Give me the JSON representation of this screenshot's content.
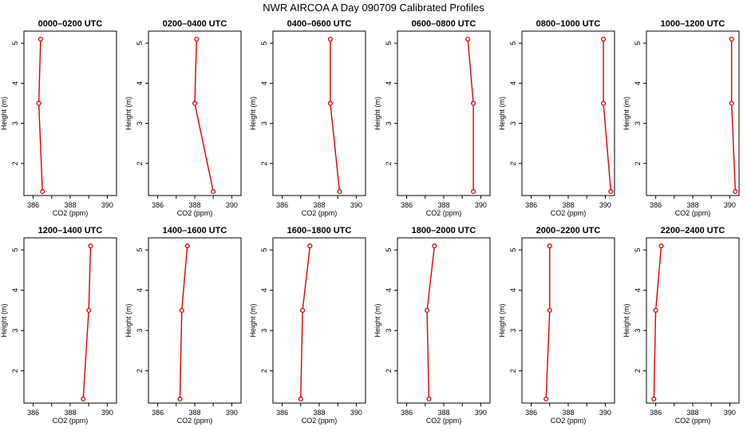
{
  "figure": {
    "title": "NWR AIRCOA A  Day 090709  Calibrated Profiles",
    "line_color": "#dd0000",
    "point_color": "#dd0000"
  },
  "chart_data": [
    {
      "type": "line",
      "title": "0000–0200 UTC",
      "xlabel": "CO2 (ppm)",
      "ylabel": "Height (m)",
      "xlim": [
        385.5,
        390.5
      ],
      "ylim": [
        1.2,
        5.3
      ],
      "xticks": [
        386,
        388,
        390
      ],
      "yticks": [
        2,
        3,
        4,
        5
      ],
      "x": [
        386.5,
        386.3,
        386.4
      ],
      "y": [
        1.3,
        3.5,
        5.1
      ]
    },
    {
      "type": "line",
      "title": "0200–0400 UTC",
      "xlabel": "CO2 (ppm)",
      "ylabel": "Height (m)",
      "xlim": [
        385.5,
        390.5
      ],
      "ylim": [
        1.2,
        5.3
      ],
      "xticks": [
        386,
        388,
        390
      ],
      "yticks": [
        2,
        3,
        4,
        5
      ],
      "x": [
        389.0,
        388.0,
        388.1
      ],
      "y": [
        1.3,
        3.5,
        5.1
      ]
    },
    {
      "type": "line",
      "title": "0400–0600 UTC",
      "xlabel": "CO2 (ppm)",
      "ylabel": "Height (m)",
      "xlim": [
        385.5,
        390.5
      ],
      "ylim": [
        1.2,
        5.3
      ],
      "xticks": [
        386,
        388,
        390
      ],
      "yticks": [
        2,
        3,
        4,
        5
      ],
      "x": [
        389.1,
        388.6,
        388.6
      ],
      "y": [
        1.3,
        3.5,
        5.1
      ]
    },
    {
      "type": "line",
      "title": "0600–0800 UTC",
      "xlabel": "CO2 (ppm)",
      "ylabel": "Height (m)",
      "xlim": [
        385.5,
        390.5
      ],
      "ylim": [
        1.2,
        5.3
      ],
      "xticks": [
        386,
        388,
        390
      ],
      "yticks": [
        2,
        3,
        4,
        5
      ],
      "x": [
        389.6,
        389.6,
        389.3
      ],
      "y": [
        1.3,
        3.5,
        5.1
      ]
    },
    {
      "type": "line",
      "title": "0800–1000 UTC",
      "xlabel": "CO2 (ppm)",
      "ylabel": "Height (m)",
      "xlim": [
        385.5,
        390.5
      ],
      "ylim": [
        1.2,
        5.3
      ],
      "xticks": [
        386,
        388,
        390
      ],
      "yticks": [
        2,
        3,
        4,
        5
      ],
      "x": [
        390.3,
        389.9,
        389.9
      ],
      "y": [
        1.3,
        3.5,
        5.1
      ]
    },
    {
      "type": "line",
      "title": "1000–1200 UTC",
      "xlabel": "CO2 (ppm)",
      "ylabel": "Height (m)",
      "xlim": [
        385.5,
        390.5
      ],
      "ylim": [
        1.2,
        5.3
      ],
      "xticks": [
        386,
        388,
        390
      ],
      "yticks": [
        2,
        3,
        4,
        5
      ],
      "x": [
        390.3,
        390.1,
        390.1
      ],
      "y": [
        1.3,
        3.5,
        5.1
      ]
    },
    {
      "type": "line",
      "title": "1200–1400 UTC",
      "xlabel": "CO2 (ppm)",
      "ylabel": "Height (m)",
      "xlim": [
        385.5,
        390.5
      ],
      "ylim": [
        1.2,
        5.3
      ],
      "xticks": [
        386,
        388,
        390
      ],
      "yticks": [
        2,
        3,
        4,
        5
      ],
      "x": [
        388.7,
        389.0,
        389.1
      ],
      "y": [
        1.3,
        3.5,
        5.1
      ]
    },
    {
      "type": "line",
      "title": "1400–1600 UTC",
      "xlabel": "CO2 (ppm)",
      "ylabel": "Height (m)",
      "xlim": [
        385.5,
        390.5
      ],
      "ylim": [
        1.2,
        5.3
      ],
      "xticks": [
        386,
        388,
        390
      ],
      "yticks": [
        2,
        3,
        4,
        5
      ],
      "x": [
        387.2,
        387.3,
        387.6
      ],
      "y": [
        1.3,
        3.5,
        5.1
      ]
    },
    {
      "type": "line",
      "title": "1600–1800 UTC",
      "xlabel": "CO2 (ppm)",
      "ylabel": "Height (m)",
      "xlim": [
        385.5,
        390.5
      ],
      "ylim": [
        1.2,
        5.3
      ],
      "xticks": [
        386,
        388,
        390
      ],
      "yticks": [
        2,
        3,
        4,
        5
      ],
      "x": [
        387.0,
        387.1,
        387.5
      ],
      "y": [
        1.3,
        3.5,
        5.1
      ]
    },
    {
      "type": "line",
      "title": "1800–2000 UTC",
      "xlabel": "CO2 (ppm)",
      "ylabel": "Height (m)",
      "xlim": [
        385.5,
        390.5
      ],
      "ylim": [
        1.2,
        5.3
      ],
      "xticks": [
        386,
        388,
        390
      ],
      "yticks": [
        2,
        3,
        4,
        5
      ],
      "x": [
        387.2,
        387.1,
        387.5
      ],
      "y": [
        1.3,
        3.5,
        5.1
      ]
    },
    {
      "type": "line",
      "title": "2000–2200 UTC",
      "xlabel": "CO2 (ppm)",
      "ylabel": "Height (m)",
      "xlim": [
        385.5,
        390.5
      ],
      "ylim": [
        1.2,
        5.3
      ],
      "xticks": [
        386,
        388,
        390
      ],
      "yticks": [
        2,
        3,
        4,
        5
      ],
      "x": [
        386.8,
        387.0,
        387.0
      ],
      "y": [
        1.3,
        3.5,
        5.1
      ]
    },
    {
      "type": "line",
      "title": "2200–2400 UTC",
      "xlabel": "CO2 (ppm)",
      "ylabel": "Height (m)",
      "xlim": [
        385.5,
        390.5
      ],
      "ylim": [
        1.2,
        5.3
      ],
      "xticks": [
        386,
        388,
        390
      ],
      "yticks": [
        2,
        3,
        4,
        5
      ],
      "x": [
        385.9,
        386.0,
        386.3
      ],
      "y": [
        1.3,
        3.5,
        5.1
      ]
    }
  ]
}
